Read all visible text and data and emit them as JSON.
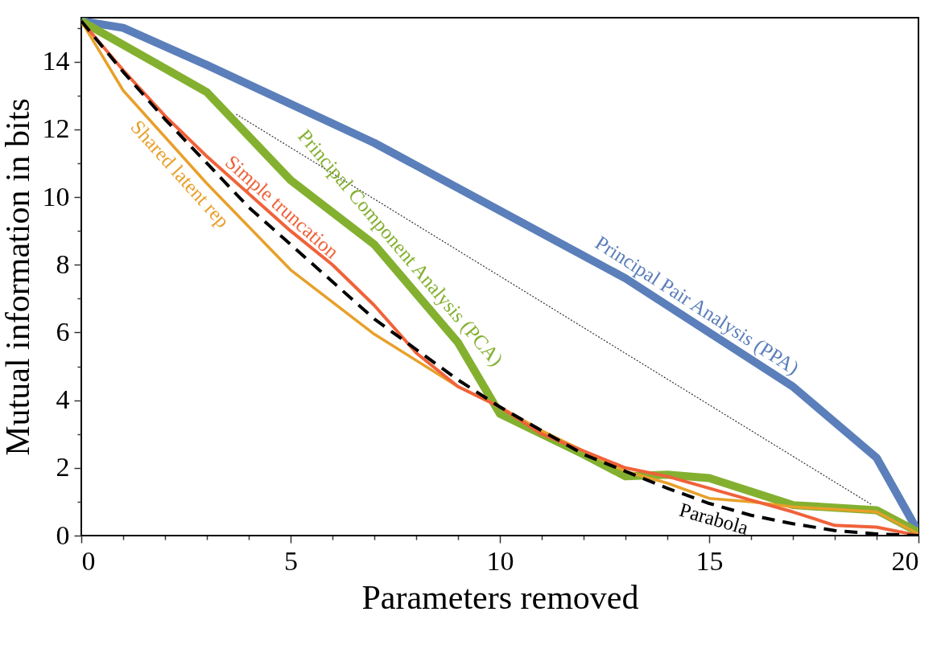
{
  "chart_data": {
    "type": "line",
    "xlabel": "Parameters removed",
    "ylabel": "Mutual information in bits",
    "xlim": [
      0,
      20
    ],
    "ylim": [
      0,
      15.3
    ],
    "xticks": [
      0,
      {
        "value": 1,
        "label": null
      },
      {
        "value": 2,
        "label": null
      },
      {
        "value": 3,
        "label": null
      },
      {
        "value": 4,
        "label": null
      },
      5,
      {
        "value": 6,
        "label": null
      },
      {
        "value": 7,
        "label": null
      },
      {
        "value": 8,
        "label": null
      },
      {
        "value": 9,
        "label": null
      },
      10,
      {
        "value": 11,
        "label": null
      },
      {
        "value": 12,
        "label": null
      },
      {
        "value": 13,
        "label": null
      },
      {
        "value": 14,
        "label": null
      },
      15,
      {
        "value": 16,
        "label": null
      },
      {
        "value": 17,
        "label": null
      },
      {
        "value": 18,
        "label": null
      },
      {
        "value": 19,
        "label": null
      },
      20
    ],
    "yticks": [
      0,
      {
        "value": 1,
        "label": null
      },
      2,
      {
        "value": 3,
        "label": null
      },
      4,
      {
        "value": 5,
        "label": null
      },
      6,
      {
        "value": 7,
        "label": null
      },
      8,
      {
        "value": 9,
        "label": null
      },
      10,
      {
        "value": 11,
        "label": null
      },
      12,
      {
        "value": 13,
        "label": null
      },
      14,
      {
        "value": 15,
        "label": null
      }
    ],
    "grid": false,
    "series": [
      {
        "color": "#333333",
        "line_style": "dotted",
        "x": [
          3.7,
          18.9
        ],
        "values": [
          12.45,
          0.9
        ]
      },
      {
        "name": "Principal Pair Analysis (PPA)",
        "color": "#5b7fba",
        "line_style": "solid",
        "x": [
          0,
          1,
          3,
          7,
          13,
          17,
          19,
          20
        ],
        "values": [
          15.2,
          15.0,
          13.9,
          11.6,
          7.6,
          4.4,
          2.3,
          0.1
        ]
      },
      {
        "name": "Principal Component Analysis (PCA)",
        "color": "#84b030",
        "line_style": "solid",
        "x": [
          0,
          3,
          5,
          7,
          9,
          10,
          11,
          12,
          13,
          14,
          15,
          17,
          19,
          20
        ],
        "values": [
          15.2,
          13.1,
          10.5,
          8.6,
          5.7,
          3.6,
          3.0,
          2.4,
          1.75,
          1.8,
          1.7,
          0.9,
          0.75,
          0.1
        ]
      },
      {
        "name": "Shared latent rep",
        "color": "#e8a02a",
        "line_style": "solid",
        "x": [
          0,
          1,
          3,
          5,
          7,
          9,
          10,
          11,
          12,
          13,
          14,
          15,
          16,
          17,
          19,
          20
        ],
        "values": [
          15.2,
          13.15,
          10.4,
          7.85,
          5.95,
          4.4,
          3.8,
          3.1,
          2.5,
          1.9,
          1.55,
          1.1,
          1.0,
          0.85,
          0.7,
          0.05
        ]
      },
      {
        "name": "Simple truncation",
        "color": "#f0623a",
        "line_style": "solid",
        "x": [
          0,
          1,
          2,
          3,
          4,
          5,
          6,
          7,
          8,
          9,
          10,
          11,
          12,
          13,
          14,
          15,
          16,
          17,
          18,
          19,
          20
        ],
        "values": [
          15.2,
          13.75,
          12.4,
          11.2,
          10.1,
          9.0,
          8.0,
          6.8,
          5.4,
          4.4,
          3.8,
          3.0,
          2.5,
          2.0,
          1.75,
          1.4,
          1.05,
          0.7,
          0.3,
          0.25,
          0
        ]
      },
      {
        "name": "Parabola",
        "color": "#000000",
        "line_style": "dashed",
        "x": [
          0,
          1,
          2,
          3,
          4,
          5,
          6,
          7,
          8,
          9,
          10,
          11,
          12,
          13,
          14,
          15,
          16,
          17,
          18,
          19,
          20
        ],
        "values": [
          15.2,
          13.7,
          12.3,
          11.0,
          9.7,
          8.6,
          7.5,
          6.4,
          5.5,
          4.6,
          3.8,
          3.1,
          2.4,
          1.9,
          1.4,
          0.95,
          0.6,
          0.35,
          0.15,
          0.05,
          0
        ]
      }
    ]
  }
}
